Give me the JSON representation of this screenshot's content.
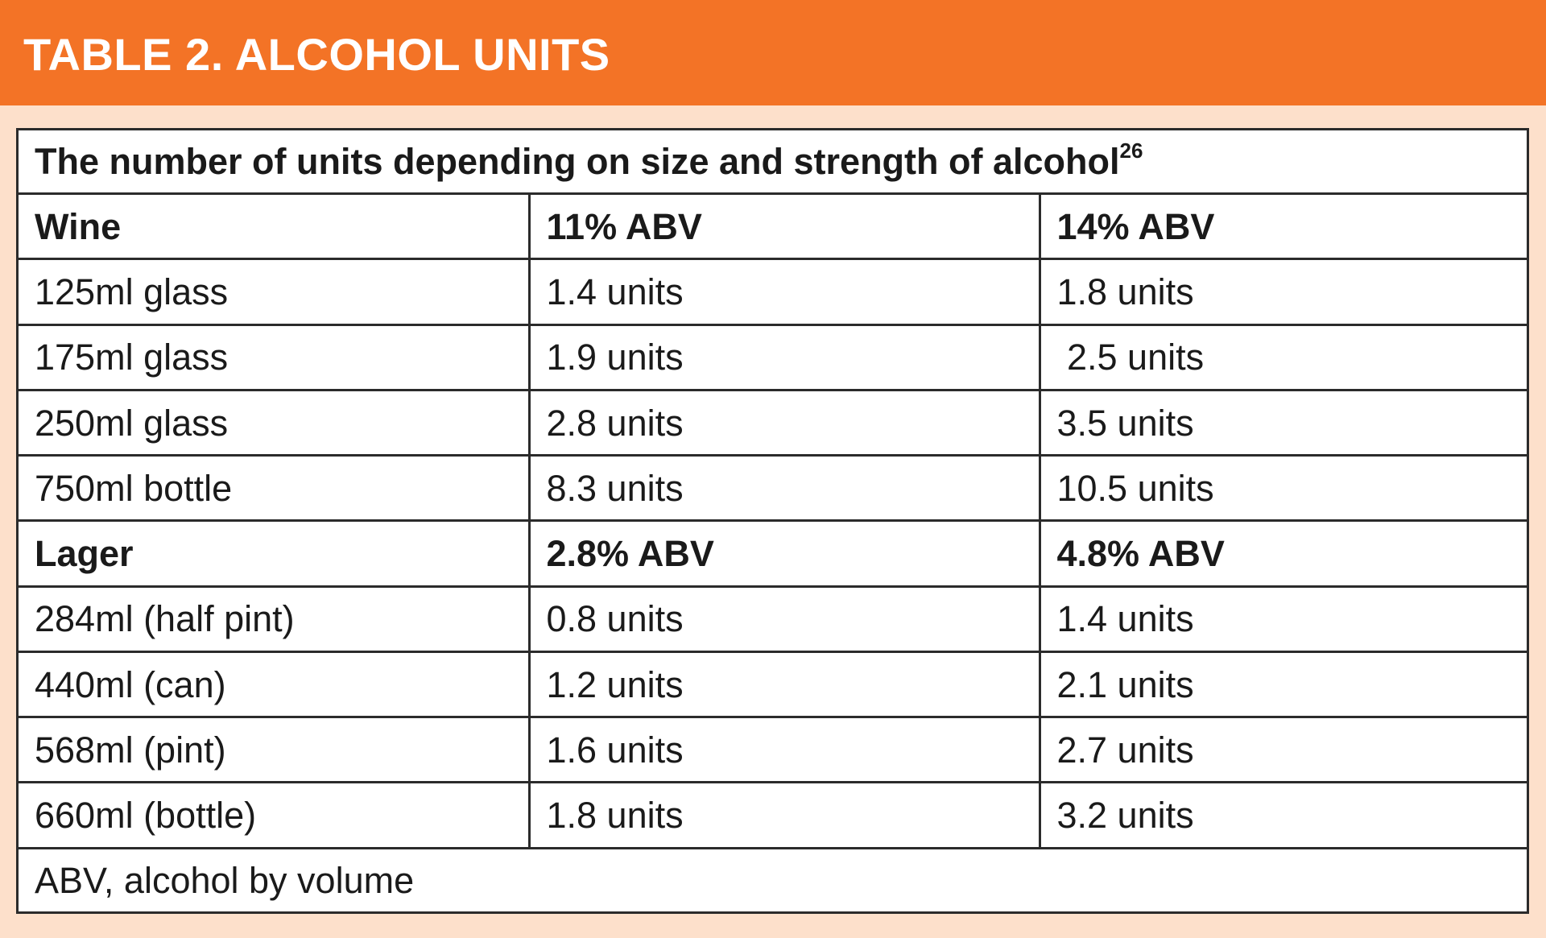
{
  "header": {
    "title": "TABLE 2. ALCOHOL UNITS"
  },
  "table": {
    "caption": "The number of units depending on size and strength of alcohol",
    "caption_ref": "26",
    "wine": {
      "header": [
        "Wine",
        "11% ABV",
        "14% ABV"
      ],
      "rows": [
        [
          "125ml glass",
          "1.4 units",
          "1.8 units"
        ],
        [
          "175ml glass",
          "1.9 units",
          " 2.5 units"
        ],
        [
          "250ml glass",
          "2.8 units",
          "3.5 units"
        ],
        [
          "750ml bottle",
          "8.3 units",
          "10.5 units"
        ]
      ]
    },
    "lager": {
      "header": [
        "Lager",
        "2.8% ABV",
        "4.8% ABV"
      ],
      "rows": [
        [
          "284ml (half pint)",
          "0.8 units",
          "1.4 units"
        ],
        [
          "440ml (can)",
          "1.2 units",
          "2.1 units"
        ],
        [
          "568ml (pint)",
          "1.6 units",
          "2.7 units"
        ],
        [
          "660ml (bottle)",
          "1.8 units",
          "3.2 units"
        ]
      ]
    },
    "footnote": "ABV, alcohol by volume"
  },
  "colors": {
    "banner": "#f37326",
    "background": "#fde0cb",
    "border": "#2b2b2b"
  }
}
